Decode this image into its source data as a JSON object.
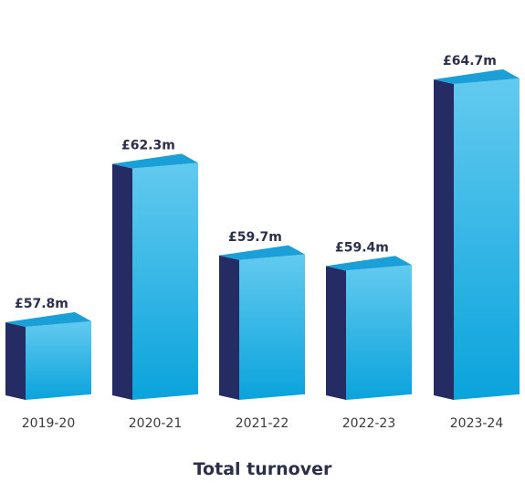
{
  "chart_data": {
    "type": "bar",
    "title": "Total turnover",
    "categories": [
      "2019-20",
      "2020-21",
      "2021-22",
      "2022-23",
      "2023-24"
    ],
    "values": [
      57.8,
      62.3,
      59.7,
      59.4,
      64.7
    ],
    "value_labels": [
      "£57.8m",
      "£62.3m",
      "£59.7m",
      "£59.4m",
      "£64.7m"
    ],
    "unit": "£m",
    "grid": false,
    "legend": "none",
    "colors": {
      "front_top": "#63caef",
      "front_bottom": "#0aa3dc",
      "top_face": "#1b9fd8",
      "side_face": "#242c63",
      "label_text": "#2b2f4a",
      "tick_text": "#3a3a3a"
    }
  }
}
